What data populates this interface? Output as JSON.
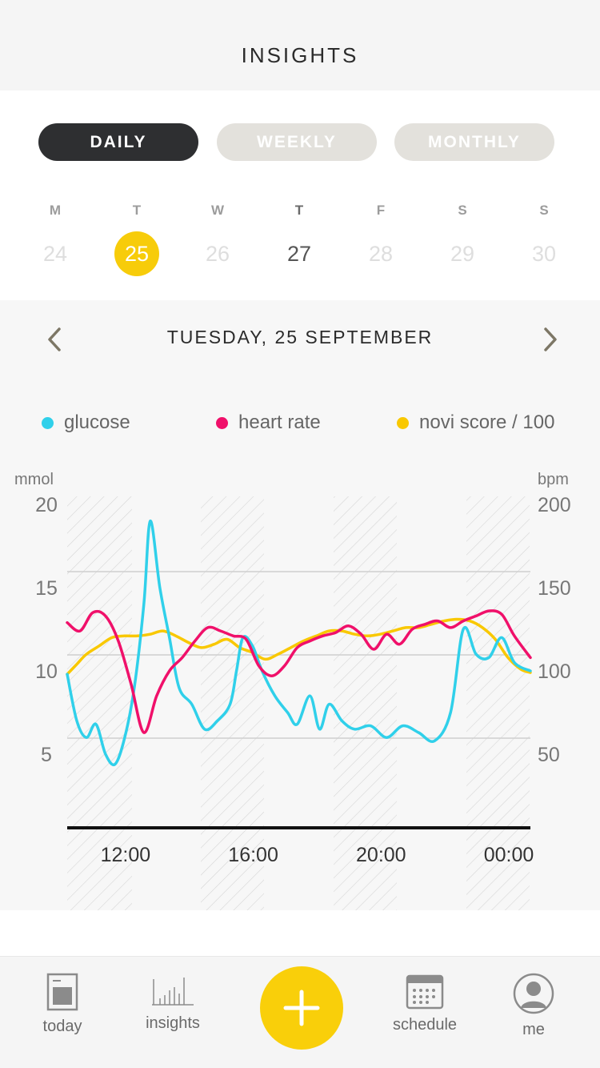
{
  "header": {
    "title": "INSIGHTS"
  },
  "period_tabs": [
    {
      "label": "DAILY",
      "active": true
    },
    {
      "label": "WEEKLY",
      "active": false
    },
    {
      "label": "MONTHLY",
      "active": false
    }
  ],
  "week": [
    {
      "letter": "M",
      "num": "24"
    },
    {
      "letter": "T",
      "num": "25",
      "selected": true
    },
    {
      "letter": "W",
      "num": "26"
    },
    {
      "letter": "T",
      "num": "27",
      "today": true
    },
    {
      "letter": "F",
      "num": "28"
    },
    {
      "letter": "S",
      "num": "29"
    },
    {
      "letter": "S",
      "num": "30"
    }
  ],
  "date_nav": {
    "title": "TUESDAY, 25 SEPTEMBER",
    "prev_icon": "chevron-left-icon",
    "next_icon": "chevron-right-icon"
  },
  "legend": [
    {
      "label": "glucose",
      "color": "#30d0ea"
    },
    {
      "label": "heart rate",
      "color": "#f0106a"
    },
    {
      "label": "novi score / 100",
      "color": "#f9c800"
    }
  ],
  "chart_data": {
    "type": "line",
    "left_axis": {
      "unit": "mmol",
      "ticks": [
        "20",
        "15",
        "10",
        "5"
      ],
      "range": [
        0,
        20
      ]
    },
    "right_axis": {
      "unit": "bpm",
      "ticks": [
        "200",
        "150",
        "100",
        "50"
      ],
      "range": [
        0,
        200
      ]
    },
    "x_ticks": [
      "12:00",
      "16:00",
      "20:00",
      "00:00"
    ],
    "x_range": [
      10,
      24.5
    ],
    "series": [
      {
        "name": "glucose",
        "axis": "left",
        "color": "#30d0ea",
        "points": [
          [
            10,
            9.8
          ],
          [
            10.3,
            7
          ],
          [
            10.6,
            6
          ],
          [
            10.9,
            6.8
          ],
          [
            11.2,
            5
          ],
          [
            11.5,
            4.4
          ],
          [
            11.8,
            6
          ],
          [
            12.1,
            9
          ],
          [
            12.4,
            14
          ],
          [
            12.6,
            19
          ],
          [
            12.9,
            15
          ],
          [
            13.2,
            12
          ],
          [
            13.5,
            9
          ],
          [
            13.9,
            8
          ],
          [
            14.3,
            6.5
          ],
          [
            14.7,
            7
          ],
          [
            15.1,
            8
          ],
          [
            15.3,
            10
          ],
          [
            15.5,
            12
          ],
          [
            15.8,
            11.5
          ],
          [
            16.1,
            10
          ],
          [
            16.5,
            8.5
          ],
          [
            16.9,
            7.5
          ],
          [
            17.2,
            6.8
          ],
          [
            17.6,
            8.5
          ],
          [
            17.9,
            6.5
          ],
          [
            18.2,
            8
          ],
          [
            18.6,
            7
          ],
          [
            19,
            6.5
          ],
          [
            19.5,
            6.7
          ],
          [
            20,
            6
          ],
          [
            20.5,
            6.7
          ],
          [
            21,
            6.3
          ],
          [
            21.5,
            5.8
          ],
          [
            22,
            7.5
          ],
          [
            22.4,
            12.5
          ],
          [
            22.8,
            11
          ],
          [
            23.2,
            10.8
          ],
          [
            23.6,
            12
          ],
          [
            24,
            10.5
          ],
          [
            24.5,
            10
          ]
        ]
      },
      {
        "name": "heart rate",
        "axis": "right",
        "color": "#f0106a",
        "points": [
          [
            10,
            129
          ],
          [
            10.4,
            124
          ],
          [
            10.8,
            135
          ],
          [
            11.2,
            133
          ],
          [
            11.6,
            118
          ],
          [
            12,
            92
          ],
          [
            12.4,
            63
          ],
          [
            12.8,
            85
          ],
          [
            13.2,
            100
          ],
          [
            13.6,
            108
          ],
          [
            14,
            118
          ],
          [
            14.4,
            126
          ],
          [
            14.8,
            124
          ],
          [
            15.2,
            121
          ],
          [
            15.6,
            119
          ],
          [
            16,
            103
          ],
          [
            16.4,
            97
          ],
          [
            16.8,
            103
          ],
          [
            17.2,
            114
          ],
          [
            17.6,
            118
          ],
          [
            18,
            121
          ],
          [
            18.4,
            123
          ],
          [
            18.8,
            127
          ],
          [
            19.2,
            122
          ],
          [
            19.6,
            113
          ],
          [
            20,
            122
          ],
          [
            20.4,
            116
          ],
          [
            20.8,
            125
          ],
          [
            21.2,
            128
          ],
          [
            21.6,
            130
          ],
          [
            22,
            126
          ],
          [
            22.4,
            130
          ],
          [
            22.8,
            133
          ],
          [
            23.2,
            136
          ],
          [
            23.6,
            134
          ],
          [
            24,
            121
          ],
          [
            24.5,
            108
          ]
        ]
      },
      {
        "name": "novi score / 100",
        "axis": "right",
        "color": "#f9c800",
        "points": [
          [
            10,
            98
          ],
          [
            10.3,
            104
          ],
          [
            10.6,
            110
          ],
          [
            11,
            115
          ],
          [
            11.4,
            120
          ],
          [
            11.8,
            121
          ],
          [
            12.2,
            121
          ],
          [
            12.6,
            122
          ],
          [
            13,
            124
          ],
          [
            13.4,
            121
          ],
          [
            13.8,
            117
          ],
          [
            14.2,
            114
          ],
          [
            14.6,
            116
          ],
          [
            15,
            119
          ],
          [
            15.4,
            114
          ],
          [
            15.8,
            111
          ],
          [
            16.2,
            107
          ],
          [
            16.6,
            110
          ],
          [
            17,
            114
          ],
          [
            17.4,
            118
          ],
          [
            17.8,
            121
          ],
          [
            18.2,
            124
          ],
          [
            18.6,
            124
          ],
          [
            19,
            122
          ],
          [
            19.4,
            121
          ],
          [
            19.8,
            122
          ],
          [
            20.2,
            124
          ],
          [
            20.6,
            126
          ],
          [
            21,
            126
          ],
          [
            21.4,
            128
          ],
          [
            21.8,
            130
          ],
          [
            22.2,
            131
          ],
          [
            22.6,
            130
          ],
          [
            23,
            126
          ],
          [
            23.4,
            119
          ],
          [
            23.8,
            108
          ],
          [
            24.2,
            101
          ],
          [
            24.5,
            99
          ]
        ]
      }
    ]
  },
  "tabbar": {
    "tabs": [
      {
        "label": "today",
        "icon": "today-icon"
      },
      {
        "label": "insights",
        "icon": "insights-icon"
      },
      {
        "label": "",
        "icon": "plus-icon"
      },
      {
        "label": "schedule",
        "icon": "calendar-icon"
      },
      {
        "label": "me",
        "icon": "profile-icon"
      }
    ]
  }
}
